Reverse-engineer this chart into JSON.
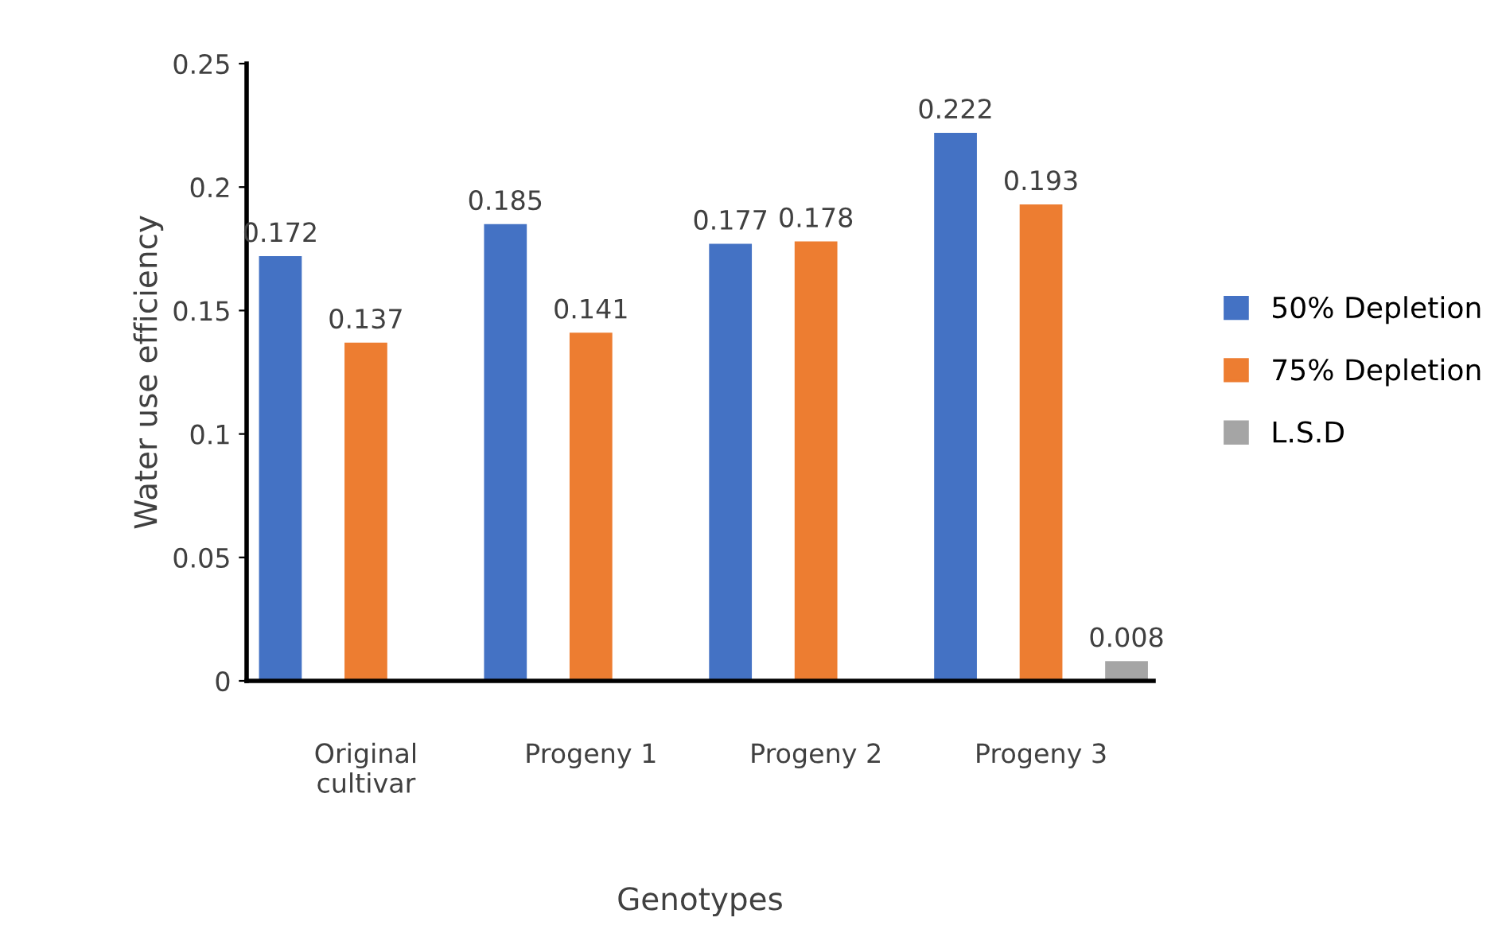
{
  "chart_data": {
    "type": "bar",
    "xlabel": "Genotypes",
    "ylabel": "Water use efficiency",
    "categories": [
      "Original\ncultivar",
      "Progeny 1",
      "Progeny 2",
      "Progeny 3"
    ],
    "series": [
      {
        "name": "50% Depletion",
        "color": "#4472c4",
        "values": [
          0.172,
          0.185,
          0.177,
          0.222
        ]
      },
      {
        "name": "75% Depletion",
        "color": "#ed7d31",
        "values": [
          0.137,
          0.141,
          0.178,
          0.193
        ]
      },
      {
        "name": "L.S.D",
        "color": "#a5a5a5",
        "values": [
          null,
          null,
          null,
          0.008
        ]
      }
    ],
    "ylim": [
      0,
      0.25
    ],
    "yticks": [
      0,
      0.05,
      0.1,
      0.15,
      0.2,
      0.25
    ],
    "data_labels": true,
    "grid": false,
    "legend": "right"
  }
}
